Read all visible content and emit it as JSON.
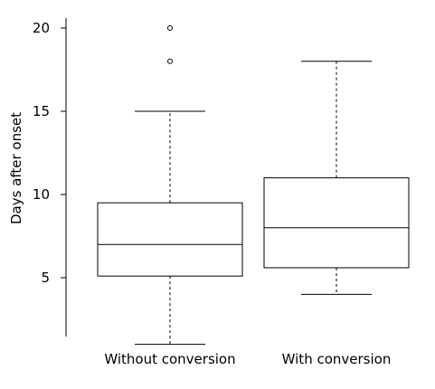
{
  "chart_data": {
    "type": "boxplot",
    "title": "",
    "xlabel": "",
    "ylabel": "Days after onset",
    "ylim": [
      0,
      21
    ],
    "yticks": [
      5,
      10,
      15,
      20
    ],
    "grid": false,
    "legend": "none",
    "categories": [
      "Without conversion",
      "With conversion"
    ],
    "boxes": [
      {
        "category": "Without conversion",
        "whisker_low": 1,
        "q1": 5.1,
        "median": 7,
        "q3": 9.5,
        "whisker_high": 15,
        "outliers": [
          18,
          20
        ]
      },
      {
        "category": "With conversion",
        "whisker_low": 4,
        "q1": 5.6,
        "median": 8,
        "q3": 11,
        "whisker_high": 18,
        "outliers": []
      }
    ]
  }
}
